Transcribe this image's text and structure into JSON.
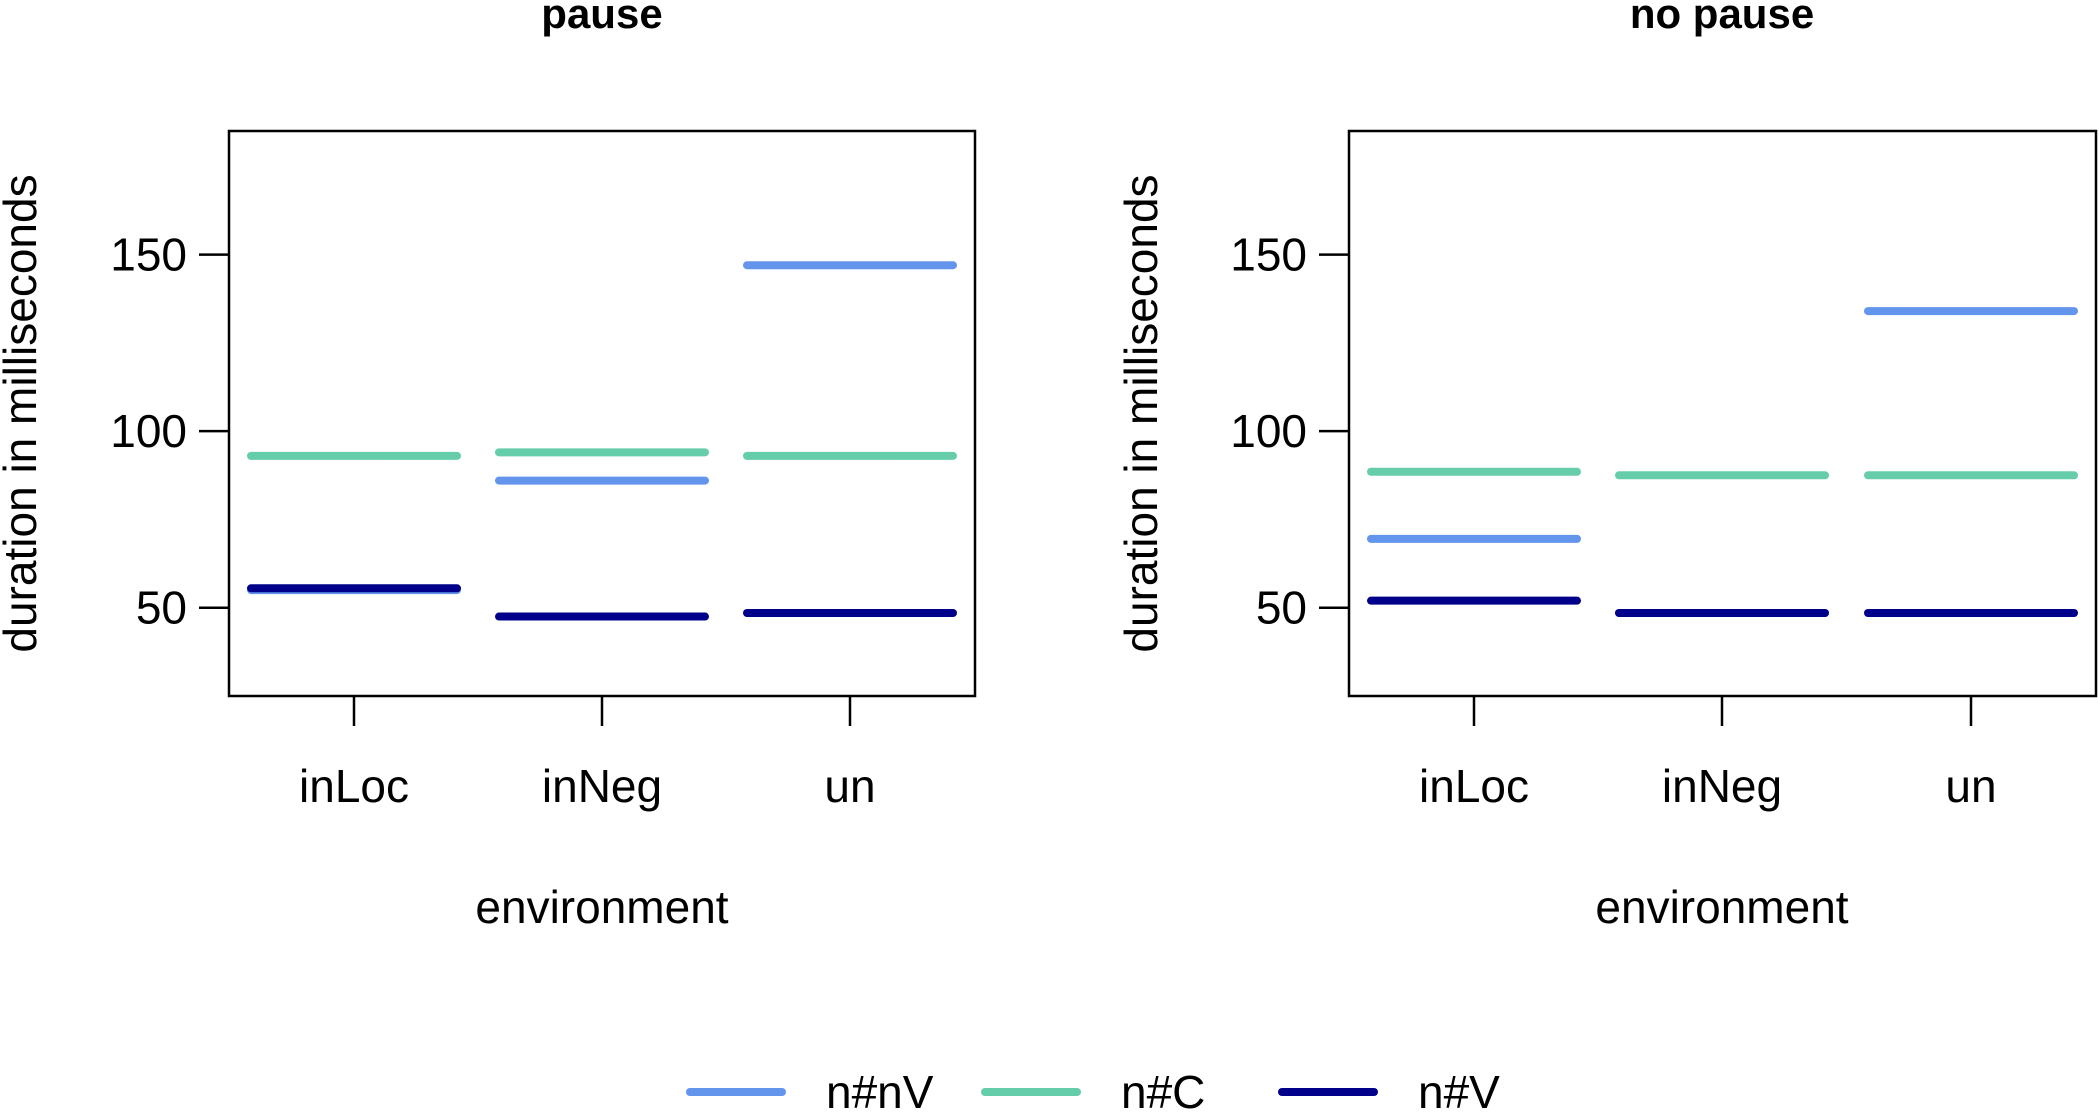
{
  "chart_data": [
    {
      "type": "line",
      "title": "pause",
      "xlabel": "environment",
      "ylabel": "duration in milliseconds",
      "categories": [
        "inLoc",
        "inNeg",
        "un"
      ],
      "yticks": [
        50,
        100,
        150
      ],
      "ylim": [
        25,
        185
      ],
      "grid": false,
      "series": [
        {
          "name": "n#nV",
          "color": "#6495ED",
          "values": [
            55,
            86,
            147
          ]
        },
        {
          "name": "n#C",
          "color": "#66CDAA",
          "values": [
            93,
            94,
            93
          ]
        },
        {
          "name": "n#V",
          "color": "#00008B",
          "values": [
            55.5,
            47.5,
            48.5
          ]
        }
      ]
    },
    {
      "type": "line",
      "title": "no pause",
      "xlabel": "environment",
      "ylabel": "duration in milliseconds",
      "categories": [
        "inLoc",
        "inNeg",
        "un"
      ],
      "yticks": [
        50,
        100,
        150
      ],
      "ylim": [
        25,
        185
      ],
      "grid": false,
      "series": [
        {
          "name": "n#nV",
          "color": "#6495ED",
          "values": [
            69.5,
            48.5,
            134
          ]
        },
        {
          "name": "n#C",
          "color": "#66CDAA",
          "values": [
            88.5,
            87.5,
            87.5
          ]
        },
        {
          "name": "n#V",
          "color": "#00008B",
          "values": [
            52,
            48.5,
            48.5
          ]
        }
      ]
    }
  ],
  "legend": {
    "placement": "bottom",
    "entries": [
      {
        "label": "n#nV",
        "color": "#6495ED"
      },
      {
        "label": "n#C",
        "color": "#66CDAA"
      },
      {
        "label": "n#V",
        "color": "#00008B"
      }
    ]
  }
}
